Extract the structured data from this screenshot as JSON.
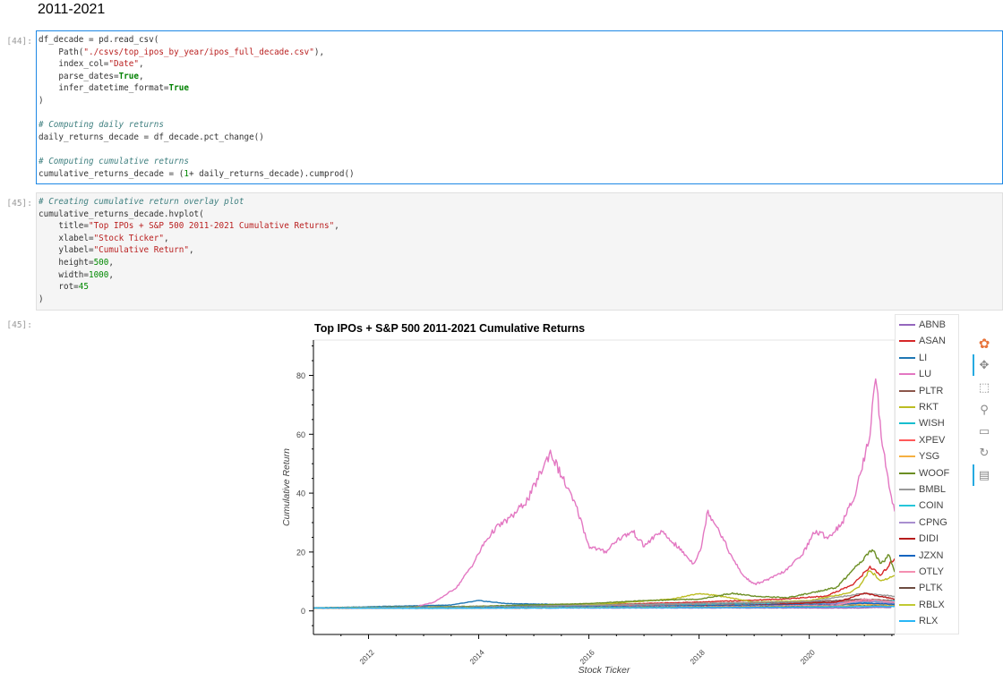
{
  "heading": "2011-2021",
  "cells": [
    {
      "prompt": "[44]:",
      "lines": [
        [
          {
            "t": "df_decade = pd.read_csv("
          }
        ],
        [
          {
            "t": "    Path("
          },
          {
            "t": "\"./csvs/top_ipos_by_year/ipos_full_decade.csv\"",
            "c": "s"
          },
          {
            "t": "),"
          }
        ],
        [
          {
            "t": "    index_col="
          },
          {
            "t": "\"Date\"",
            "c": "s"
          },
          {
            "t": ","
          }
        ],
        [
          {
            "t": "    parse_dates="
          },
          {
            "t": "True",
            "c": "k"
          },
          {
            "t": ","
          }
        ],
        [
          {
            "t": "    infer_datetime_format="
          },
          {
            "t": "True",
            "c": "k"
          }
        ],
        [
          {
            "t": ")"
          }
        ],
        [
          {
            "t": ""
          }
        ],
        [
          {
            "t": "# Computing daily returns",
            "c": "c"
          }
        ],
        [
          {
            "t": "daily_returns_decade = df_decade.pct_change()"
          }
        ],
        [
          {
            "t": ""
          }
        ],
        [
          {
            "t": "# Computing cumulative returns",
            "c": "c"
          }
        ],
        [
          {
            "t": "cumulative_returns_decade = ("
          },
          {
            "t": "1",
            "c": "num"
          },
          {
            "t": "+ daily_returns_decade).cumprod()"
          }
        ]
      ]
    },
    {
      "prompt": "[45]:",
      "lines": [
        [
          {
            "t": "# Creating cumulative return overlay plot",
            "c": "c"
          }
        ],
        [
          {
            "t": "cumulative_returns_decade.hvplot("
          }
        ],
        [
          {
            "t": "    title="
          },
          {
            "t": "\"Top IPOs + S&P 500 2011-2021 Cumulative Returns\"",
            "c": "s"
          },
          {
            "t": ","
          }
        ],
        [
          {
            "t": "    xlabel="
          },
          {
            "t": "\"Stock Ticker\"",
            "c": "s"
          },
          {
            "t": ","
          }
        ],
        [
          {
            "t": "    ylabel="
          },
          {
            "t": "\"Cumulative Return\"",
            "c": "s"
          },
          {
            "t": ","
          }
        ],
        [
          {
            "t": "    height="
          },
          {
            "t": "500",
            "c": "num"
          },
          {
            "t": ","
          }
        ],
        [
          {
            "t": "    width="
          },
          {
            "t": "1000",
            "c": "num"
          },
          {
            "t": ","
          }
        ],
        [
          {
            "t": "    rot="
          },
          {
            "t": "45",
            "c": "num"
          }
        ],
        [
          {
            "t": ")"
          }
        ]
      ]
    }
  ],
  "output_prompt": "[45]:",
  "chart_data": {
    "type": "line",
    "title": "Top IPOs + S&P 500 2011-2021 Cumulative Returns",
    "xlabel": "Stock Ticker",
    "ylabel": "Cumulative Return",
    "xlim": [
      2011.0,
      2021.55
    ],
    "ylim": [
      -8,
      92
    ],
    "x_ticks": [
      2012,
      2014,
      2016,
      2018,
      2020
    ],
    "y_ticks": [
      0,
      20,
      40,
      60,
      80
    ],
    "legend_position": "right",
    "series": [
      {
        "name": "ABNB",
        "color": "#9467bd",
        "points": [
          [
            2011,
            1
          ],
          [
            2020.9,
            1
          ],
          [
            2021.2,
            1.2
          ],
          [
            2021.5,
            1.1
          ]
        ]
      },
      {
        "name": "ASAN",
        "color": "#d62728",
        "points": [
          [
            2011,
            1
          ],
          [
            2012,
            1.2
          ],
          [
            2014,
            1.4
          ],
          [
            2016,
            2
          ],
          [
            2018,
            3
          ],
          [
            2019.5,
            4
          ],
          [
            2020.3,
            5
          ],
          [
            2020.8,
            9
          ],
          [
            2021.1,
            15
          ],
          [
            2021.3,
            12
          ],
          [
            2021.55,
            18
          ]
        ]
      },
      {
        "name": "LI",
        "color": "#1f77b4",
        "points": [
          [
            2011,
            1
          ],
          [
            2013.5,
            2
          ],
          [
            2014,
            3.5
          ],
          [
            2014.5,
            2.5
          ],
          [
            2016,
            2
          ],
          [
            2018,
            2.5
          ],
          [
            2020,
            3
          ],
          [
            2021,
            4
          ],
          [
            2021.55,
            3
          ]
        ]
      },
      {
        "name": "LU",
        "color": "#e377c2",
        "points": [
          [
            2011,
            1
          ],
          [
            2012,
            1
          ],
          [
            2012.8,
            1.2
          ],
          [
            2013.2,
            3
          ],
          [
            2013.6,
            8
          ],
          [
            2013.9,
            16
          ],
          [
            2014.1,
            23
          ],
          [
            2014.3,
            28
          ],
          [
            2014.6,
            32
          ],
          [
            2014.9,
            38
          ],
          [
            2015.1,
            46
          ],
          [
            2015.3,
            54
          ],
          [
            2015.55,
            44
          ],
          [
            2015.8,
            34
          ],
          [
            2016,
            22
          ],
          [
            2016.3,
            20
          ],
          [
            2016.5,
            24
          ],
          [
            2016.8,
            27
          ],
          [
            2017,
            22
          ],
          [
            2017.3,
            27
          ],
          [
            2017.6,
            22
          ],
          [
            2017.9,
            16
          ],
          [
            2018.05,
            22
          ],
          [
            2018.15,
            34
          ],
          [
            2018.35,
            28
          ],
          [
            2018.6,
            18
          ],
          [
            2018.8,
            12
          ],
          [
            2019.0,
            9
          ],
          [
            2019.3,
            11
          ],
          [
            2019.6,
            14
          ],
          [
            2019.9,
            20
          ],
          [
            2020.1,
            27
          ],
          [
            2020.35,
            25
          ],
          [
            2020.6,
            30
          ],
          [
            2020.8,
            38
          ],
          [
            2020.95,
            48
          ],
          [
            2021.1,
            60
          ],
          [
            2021.2,
            82
          ],
          [
            2021.28,
            64
          ],
          [
            2021.38,
            50
          ],
          [
            2021.48,
            40
          ],
          [
            2021.55,
            34
          ]
        ]
      },
      {
        "name": "PLTR",
        "color": "#8c564b",
        "points": [
          [
            2011,
            1
          ],
          [
            2014,
            1.5
          ],
          [
            2016,
            2
          ],
          [
            2018,
            2.5
          ],
          [
            2020,
            3
          ],
          [
            2021,
            4
          ],
          [
            2021.55,
            3.5
          ]
        ]
      },
      {
        "name": "RKT",
        "color": "#bcbd22",
        "points": [
          [
            2011,
            1
          ],
          [
            2014,
            1.5
          ],
          [
            2016,
            2
          ],
          [
            2017.5,
            4
          ],
          [
            2018,
            6
          ],
          [
            2018.4,
            5
          ],
          [
            2019,
            3
          ],
          [
            2020,
            3.5
          ],
          [
            2020.7,
            6
          ],
          [
            2020.9,
            8
          ],
          [
            2021.1,
            14
          ],
          [
            2021.3,
            10
          ],
          [
            2021.55,
            12
          ]
        ]
      },
      {
        "name": "WISH",
        "color": "#17becf",
        "points": [
          [
            2011,
            1
          ],
          [
            2014,
            1.2
          ],
          [
            2016,
            1.8
          ],
          [
            2018,
            2.2
          ],
          [
            2020,
            2.5
          ],
          [
            2021,
            3
          ],
          [
            2021.55,
            3.2
          ]
        ]
      },
      {
        "name": "XPEV",
        "color": "#ff5a5a",
        "points": [
          [
            2011,
            1
          ],
          [
            2014,
            1.3
          ],
          [
            2016,
            1.6
          ],
          [
            2018,
            2
          ],
          [
            2020,
            2.4
          ],
          [
            2021,
            3.5
          ],
          [
            2021.55,
            2.8
          ]
        ]
      },
      {
        "name": "YSG",
        "color": "#f5b041",
        "points": [
          [
            2011,
            1
          ],
          [
            2014,
            1.1
          ],
          [
            2016,
            1.3
          ],
          [
            2018,
            1.7
          ],
          [
            2020,
            2
          ],
          [
            2021,
            2.3
          ],
          [
            2021.55,
            2.1
          ]
        ]
      },
      {
        "name": "WOOF",
        "color": "#6b8e23",
        "points": [
          [
            2011,
            1
          ],
          [
            2012,
            1.2
          ],
          [
            2014,
            1.6
          ],
          [
            2016,
            2.5
          ],
          [
            2017,
            3.5
          ],
          [
            2018,
            4
          ],
          [
            2018.6,
            6
          ],
          [
            2019,
            5
          ],
          [
            2019.6,
            4.5
          ],
          [
            2020,
            6
          ],
          [
            2020.5,
            8
          ],
          [
            2020.8,
            14
          ],
          [
            2021.0,
            18
          ],
          [
            2021.15,
            21
          ],
          [
            2021.3,
            16
          ],
          [
            2021.45,
            19
          ],
          [
            2021.55,
            13
          ]
        ]
      },
      {
        "name": "BMBL",
        "color": "#999999",
        "points": [
          [
            2011,
            1
          ],
          [
            2014,
            1.4
          ],
          [
            2016,
            1.9
          ],
          [
            2018,
            2.6
          ],
          [
            2020,
            3.2
          ],
          [
            2021,
            6
          ],
          [
            2021.55,
            5
          ]
        ]
      },
      {
        "name": "COIN",
        "color": "#26c6da",
        "points": [
          [
            2011,
            1
          ],
          [
            2014,
            1.2
          ],
          [
            2016,
            1.4
          ],
          [
            2018,
            1.9
          ],
          [
            2020,
            2.4
          ],
          [
            2021,
            3
          ],
          [
            2021.55,
            3.4
          ]
        ]
      },
      {
        "name": "CPNG",
        "color": "#a98fd0",
        "points": [
          [
            2011,
            1
          ],
          [
            2014,
            1.1
          ],
          [
            2016,
            1.3
          ],
          [
            2018,
            1.6
          ],
          [
            2020,
            2
          ],
          [
            2021,
            3.2
          ],
          [
            2021.55,
            2.6
          ]
        ]
      },
      {
        "name": "DIDI",
        "color": "#b71c1c",
        "points": [
          [
            2011,
            1
          ],
          [
            2013,
            1
          ],
          [
            2015,
            1.2
          ],
          [
            2017,
            1.5
          ],
          [
            2019,
            2
          ],
          [
            2020.5,
            3
          ],
          [
            2021,
            6
          ],
          [
            2021.55,
            4
          ]
        ]
      },
      {
        "name": "JZXN",
        "color": "#1565c0",
        "points": [
          [
            2011,
            1
          ],
          [
            2013,
            1.1
          ],
          [
            2015,
            1.3
          ],
          [
            2017,
            1.5
          ],
          [
            2019,
            1.9
          ],
          [
            2020.5,
            2.2
          ],
          [
            2021,
            2.6
          ],
          [
            2021.55,
            2.3
          ]
        ]
      },
      {
        "name": "OTLY",
        "color": "#f48fb1",
        "points": [
          [
            2011,
            1
          ],
          [
            2013,
            1
          ],
          [
            2015,
            1.1
          ],
          [
            2017,
            1.3
          ],
          [
            2019,
            1.6
          ],
          [
            2020.5,
            2
          ],
          [
            2021,
            4
          ],
          [
            2021.55,
            3
          ]
        ]
      },
      {
        "name": "PLTK",
        "color": "#6d4c41",
        "points": [
          [
            2011,
            1
          ],
          [
            2013,
            0.9
          ],
          [
            2015,
            1
          ],
          [
            2017,
            1.2
          ],
          [
            2019,
            1.4
          ],
          [
            2020.5,
            1.6
          ],
          [
            2021,
            1.8
          ],
          [
            2021.55,
            1.7
          ]
        ]
      },
      {
        "name": "RBLX",
        "color": "#c0ca33",
        "points": [
          [
            2011,
            1
          ],
          [
            2013,
            1
          ],
          [
            2015,
            1.1
          ],
          [
            2017,
            1.2
          ],
          [
            2019,
            1.3
          ],
          [
            2020.5,
            1.5
          ],
          [
            2021,
            1.7
          ],
          [
            2021.55,
            1.6
          ]
        ]
      },
      {
        "name": "RLX",
        "color": "#29b6f6",
        "points": [
          [
            2011,
            1
          ],
          [
            2013,
            0.9
          ],
          [
            2015,
            1
          ],
          [
            2017,
            1.1
          ],
          [
            2019,
            1.2
          ],
          [
            2020.5,
            1.4
          ],
          [
            2021,
            1.5
          ],
          [
            2021.55,
            1.5
          ]
        ]
      }
    ]
  },
  "toolbar": {
    "tools": [
      {
        "name": "bokeh-logo-icon",
        "glyph": "✿",
        "active": false
      },
      {
        "name": "pan-icon",
        "glyph": "✥",
        "active": true
      },
      {
        "name": "box-zoom-icon",
        "glyph": "⬚",
        "active": false
      },
      {
        "name": "wheel-zoom-icon",
        "glyph": "⚲",
        "active": false
      },
      {
        "name": "save-icon",
        "glyph": "▭",
        "active": false
      },
      {
        "name": "reset-icon",
        "glyph": "↻",
        "active": false
      },
      {
        "name": "hover-icon",
        "glyph": "▤",
        "active": true
      }
    ]
  }
}
